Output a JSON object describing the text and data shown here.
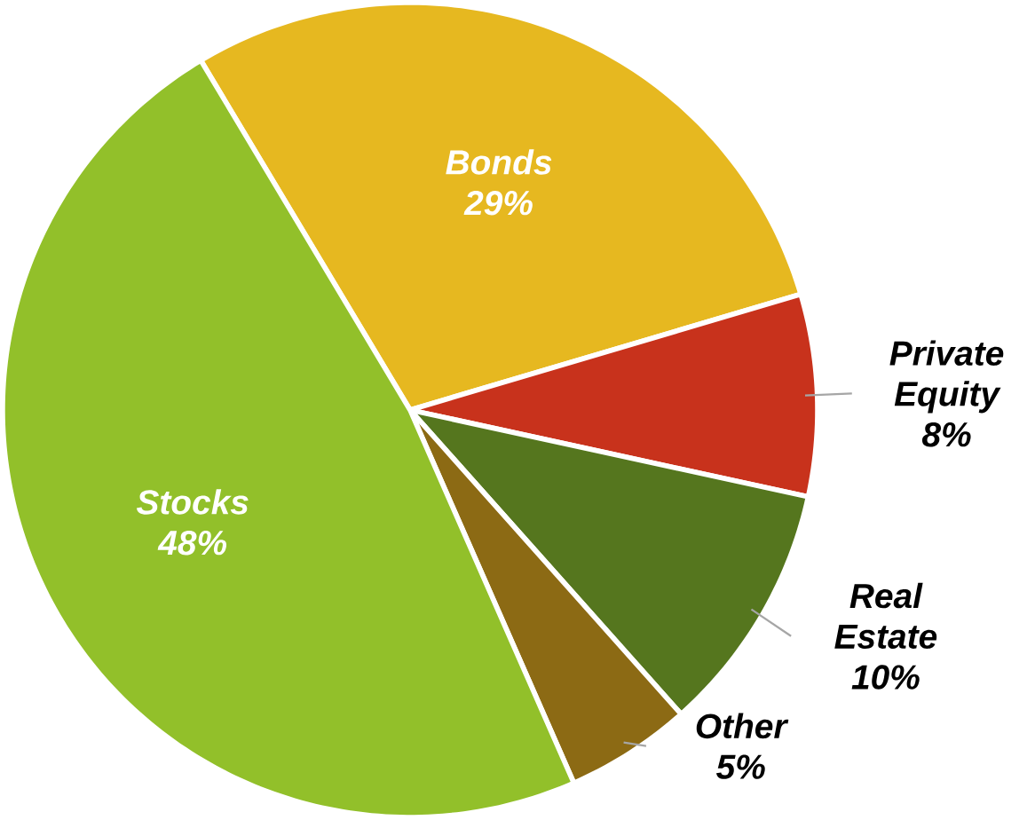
{
  "chart_data": {
    "type": "pie",
    "categories": [
      "Bonds",
      "Private Equity",
      "Real Estate",
      "Other",
      "Stocks"
    ],
    "values": [
      29,
      8,
      10,
      5,
      48
    ],
    "value_labels": [
      "29%",
      "8%",
      "10%",
      "5%",
      "48%"
    ],
    "colors": [
      "#e6b820",
      "#c8321c",
      "#55761e",
      "#8c6a14",
      "#92c02a"
    ]
  }
}
